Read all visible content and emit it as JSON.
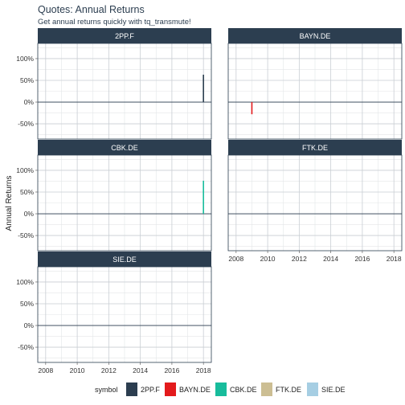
{
  "title": "Quotes: Annual Returns",
  "subtitle": "Get annual returns quickly with tq_transmute!",
  "chart_data": {
    "type": "bar",
    "title": "Quotes: Annual Returns",
    "subtitle": "Get annual returns quickly with tq_transmute!",
    "xlabel": "",
    "ylabel": "Annual Returns",
    "xlim": [
      2007.5,
      2018.5
    ],
    "ylim": [
      -0.85,
      1.35
    ],
    "x_ticks": [
      2008,
      2010,
      2012,
      2014,
      2016,
      2018
    ],
    "x_tick_labels": [
      "2008",
      "2010",
      "2012",
      "2014",
      "2016",
      "2018"
    ],
    "y_ticks": [
      -0.5,
      0,
      0.5,
      1.0
    ],
    "y_tick_labels": [
      "-50%",
      "0%",
      "50%",
      "100%"
    ],
    "grid": true,
    "legend_position": "bottom",
    "legend_title": "symbol",
    "facet_layout": {
      "ncol": 2,
      "nrow": 3
    },
    "panels": [
      {
        "symbol": "2PP.F",
        "color": "#2c3e50",
        "bars": [
          {
            "x": 2018,
            "y": 0.63
          }
        ],
        "show_x_axis": false,
        "show_y_axis": true
      },
      {
        "symbol": "BAYN.DE",
        "color": "#e31a1c",
        "bars": [
          {
            "x": 2009,
            "y": -0.28
          }
        ],
        "show_x_axis": false,
        "show_y_axis": false
      },
      {
        "symbol": "CBK.DE",
        "color": "#18bc9c",
        "bars": [
          {
            "x": 2018,
            "y": 0.76
          }
        ],
        "show_x_axis": false,
        "show_y_axis": true
      },
      {
        "symbol": "FTK.DE",
        "color": "#ccbe93",
        "bars": [],
        "show_x_axis": true,
        "show_y_axis": false
      },
      {
        "symbol": "SIE.DE",
        "color": "#a6cee3",
        "bars": [],
        "show_x_axis": true,
        "show_y_axis": true
      }
    ],
    "legend": [
      {
        "label": "2PP.F",
        "color": "#2c3e50"
      },
      {
        "label": "BAYN.DE",
        "color": "#e31a1c"
      },
      {
        "label": "CBK.DE",
        "color": "#18bc9c"
      },
      {
        "label": "FTK.DE",
        "color": "#ccbe93"
      },
      {
        "label": "SIE.DE",
        "color": "#a6cee3"
      }
    ]
  }
}
